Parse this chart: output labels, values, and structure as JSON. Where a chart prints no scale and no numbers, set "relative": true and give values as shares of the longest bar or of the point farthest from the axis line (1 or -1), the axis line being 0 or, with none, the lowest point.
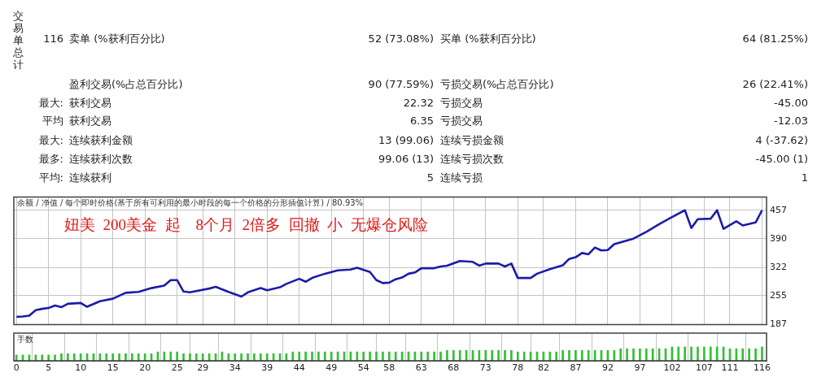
{
  "chart_data": [
    {
      "type": "other",
      "annotations": [
        "交易单总计",
        "116",
        "卖单 (%获利百分比)",
        "52 (73.08%)",
        "买单 (%获利百分比)",
        "64 (81.25%)",
        "盈利交易(%占总百分比)",
        "90 (77.59%)",
        "亏损交易(%占总百分比)",
        "26 (22.41%)",
        "最大:",
        "获利交易",
        "22.32",
        "亏损交易",
        "-45.00",
        "平均",
        "获利交易",
        "6.35",
        "亏损交易",
        "-12.03",
        "最大:",
        "连续获利金额",
        "13 (99.06)",
        "连续亏损金额",
        "4 (-37.62)",
        "最多:",
        "连续获利次数",
        "99.06 (13)",
        "连续亏损次数",
        "-45.00 (1)",
        "平均:",
        "连续获利",
        "5",
        "连续亏损",
        "1"
      ]
    },
    {
      "type": "line",
      "title": "余额 / 净值 / 每个即时价格(基于所有可利用的最小时段的每一个价格的分形插值计算) / 80.93%",
      "annotations": [
        "妞美  200美金  起    8个月  2倍多  回撤  小  无爆仓风险"
      ],
      "x": [
        0,
        1,
        2,
        3,
        4,
        5,
        6,
        7,
        8,
        10,
        11,
        13,
        15,
        17,
        19,
        21,
        23,
        24,
        25,
        26,
        27,
        30,
        31,
        33,
        35,
        36,
        38,
        39,
        41,
        42,
        44,
        45,
        46,
        48,
        50,
        52,
        53,
        55,
        56,
        57,
        58,
        59,
        60,
        61,
        62,
        63,
        65,
        66,
        67,
        69,
        71,
        72,
        73,
        75,
        76,
        77,
        78,
        80,
        81,
        83,
        85,
        86,
        87,
        88,
        89,
        90,
        91,
        92,
        93,
        94,
        96,
        98,
        100,
        102,
        104,
        105,
        106,
        108,
        109,
        110,
        112,
        113,
        115,
        116
      ],
      "series": [
        {
          "color": "#1c1ca8",
          "values": [
            205,
            206,
            208,
            221,
            224,
            226,
            232,
            228,
            236,
            238,
            229,
            242,
            248,
            262,
            264,
            273,
            279,
            292,
            292,
            265,
            263,
            272,
            276,
            264,
            253,
            263,
            273,
            268,
            275,
            283,
            295,
            288,
            297,
            307,
            315,
            317,
            321,
            311,
            292,
            285,
            286,
            294,
            298,
            307,
            310,
            320,
            320,
            324,
            326,
            337,
            335,
            326,
            331,
            331,
            324,
            331,
            297,
            297,
            307,
            318,
            327,
            342,
            346,
            356,
            353,
            369,
            362,
            363,
            377,
            381,
            390,
            406,
            424,
            441,
            457,
            415,
            436,
            437,
            457,
            413,
            431,
            421,
            428,
            457
          ]
        }
      ],
      "xlim": [
        -0.4,
        116.7
      ],
      "xticks": [
        0,
        5,
        10,
        15,
        20,
        25,
        29,
        34,
        39,
        44,
        49,
        54,
        58,
        63,
        68,
        73,
        78,
        82,
        87,
        92,
        97,
        102,
        107,
        111,
        116
      ],
      "ylim": [
        187,
        488
      ],
      "yticks": [
        187,
        255,
        322,
        390,
        457
      ],
      "grid": true,
      "tick_labels": "y",
      "marker": "none",
      "line_style": "solid"
    },
    {
      "type": "bar",
      "title": "手数",
      "relative": true,
      "x": [
        0,
        1,
        2,
        3,
        4,
        5,
        6,
        7,
        8,
        9,
        10,
        11,
        12,
        13,
        14,
        15,
        16,
        17,
        18,
        19,
        20,
        21,
        22,
        23,
        24,
        25,
        26,
        27,
        28,
        29,
        30,
        31,
        32,
        33,
        34,
        35,
        36,
        37,
        38,
        39,
        40,
        41,
        42,
        43,
        44,
        45,
        46,
        47,
        48,
        49,
        50,
        51,
        52,
        53,
        54,
        55,
        56,
        57,
        58,
        59,
        60,
        61,
        62,
        63,
        64,
        65,
        66,
        67,
        68,
        69,
        70,
        71,
        72,
        73,
        74,
        75,
        76,
        77,
        78,
        79,
        80,
        81,
        82,
        83,
        84,
        85,
        86,
        87,
        88,
        89,
        90,
        91,
        92,
        93,
        94,
        95,
        96,
        97,
        98,
        99,
        100,
        101,
        102,
        103,
        104,
        105,
        106,
        107,
        108,
        109,
        110,
        111,
        112,
        113,
        114,
        115,
        116
      ],
      "series": [
        {
          "color": "#33c033",
          "values": [
            0.42,
            0.42,
            0.42,
            0.42,
            0.42,
            0.42,
            0.42,
            0.51,
            0.51,
            0.51,
            0.51,
            0.51,
            0.51,
            0.51,
            0.51,
            0.51,
            0.51,
            0.51,
            0.51,
            0.51,
            0.51,
            0.51,
            0.64,
            0.64,
            0.64,
            0.64,
            0.51,
            0.51,
            0.51,
            0.51,
            0.51,
            0.51,
            0.64,
            0.51,
            0.51,
            0.51,
            0.51,
            0.51,
            0.51,
            0.51,
            0.51,
            0.51,
            0.51,
            0.64,
            0.64,
            0.64,
            0.64,
            0.64,
            0.64,
            0.64,
            0.64,
            0.64,
            0.64,
            0.64,
            0.64,
            0.64,
            0.64,
            0.64,
            0.64,
            0.64,
            0.64,
            0.64,
            0.64,
            0.64,
            0.64,
            0.64,
            0.64,
            0.75,
            0.75,
            0.75,
            0.75,
            0.75,
            0.75,
            0.75,
            0.75,
            0.75,
            0.75,
            0.75,
            0.64,
            0.64,
            0.64,
            0.64,
            0.64,
            0.64,
            0.64,
            0.75,
            0.75,
            0.75,
            0.75,
            0.75,
            0.75,
            0.75,
            0.75,
            0.75,
            0.87,
            0.87,
            0.87,
            0.87,
            0.87,
            0.87,
            0.87,
            0.87,
            1,
            1,
            1,
            1,
            1,
            1,
            1,
            1,
            1,
            0.87,
            0.87,
            0.87,
            0.87,
            0.87,
            1
          ]
        }
      ],
      "xlim": [
        -0.4,
        116.7
      ],
      "xticks": [
        0,
        5,
        10,
        15,
        20,
        25,
        29,
        34,
        39,
        44,
        49,
        54,
        58,
        63,
        68,
        73,
        78,
        82,
        87,
        92,
        97,
        102,
        107,
        111,
        116
      ],
      "grid": "x",
      "tick_labels": "x"
    }
  ]
}
